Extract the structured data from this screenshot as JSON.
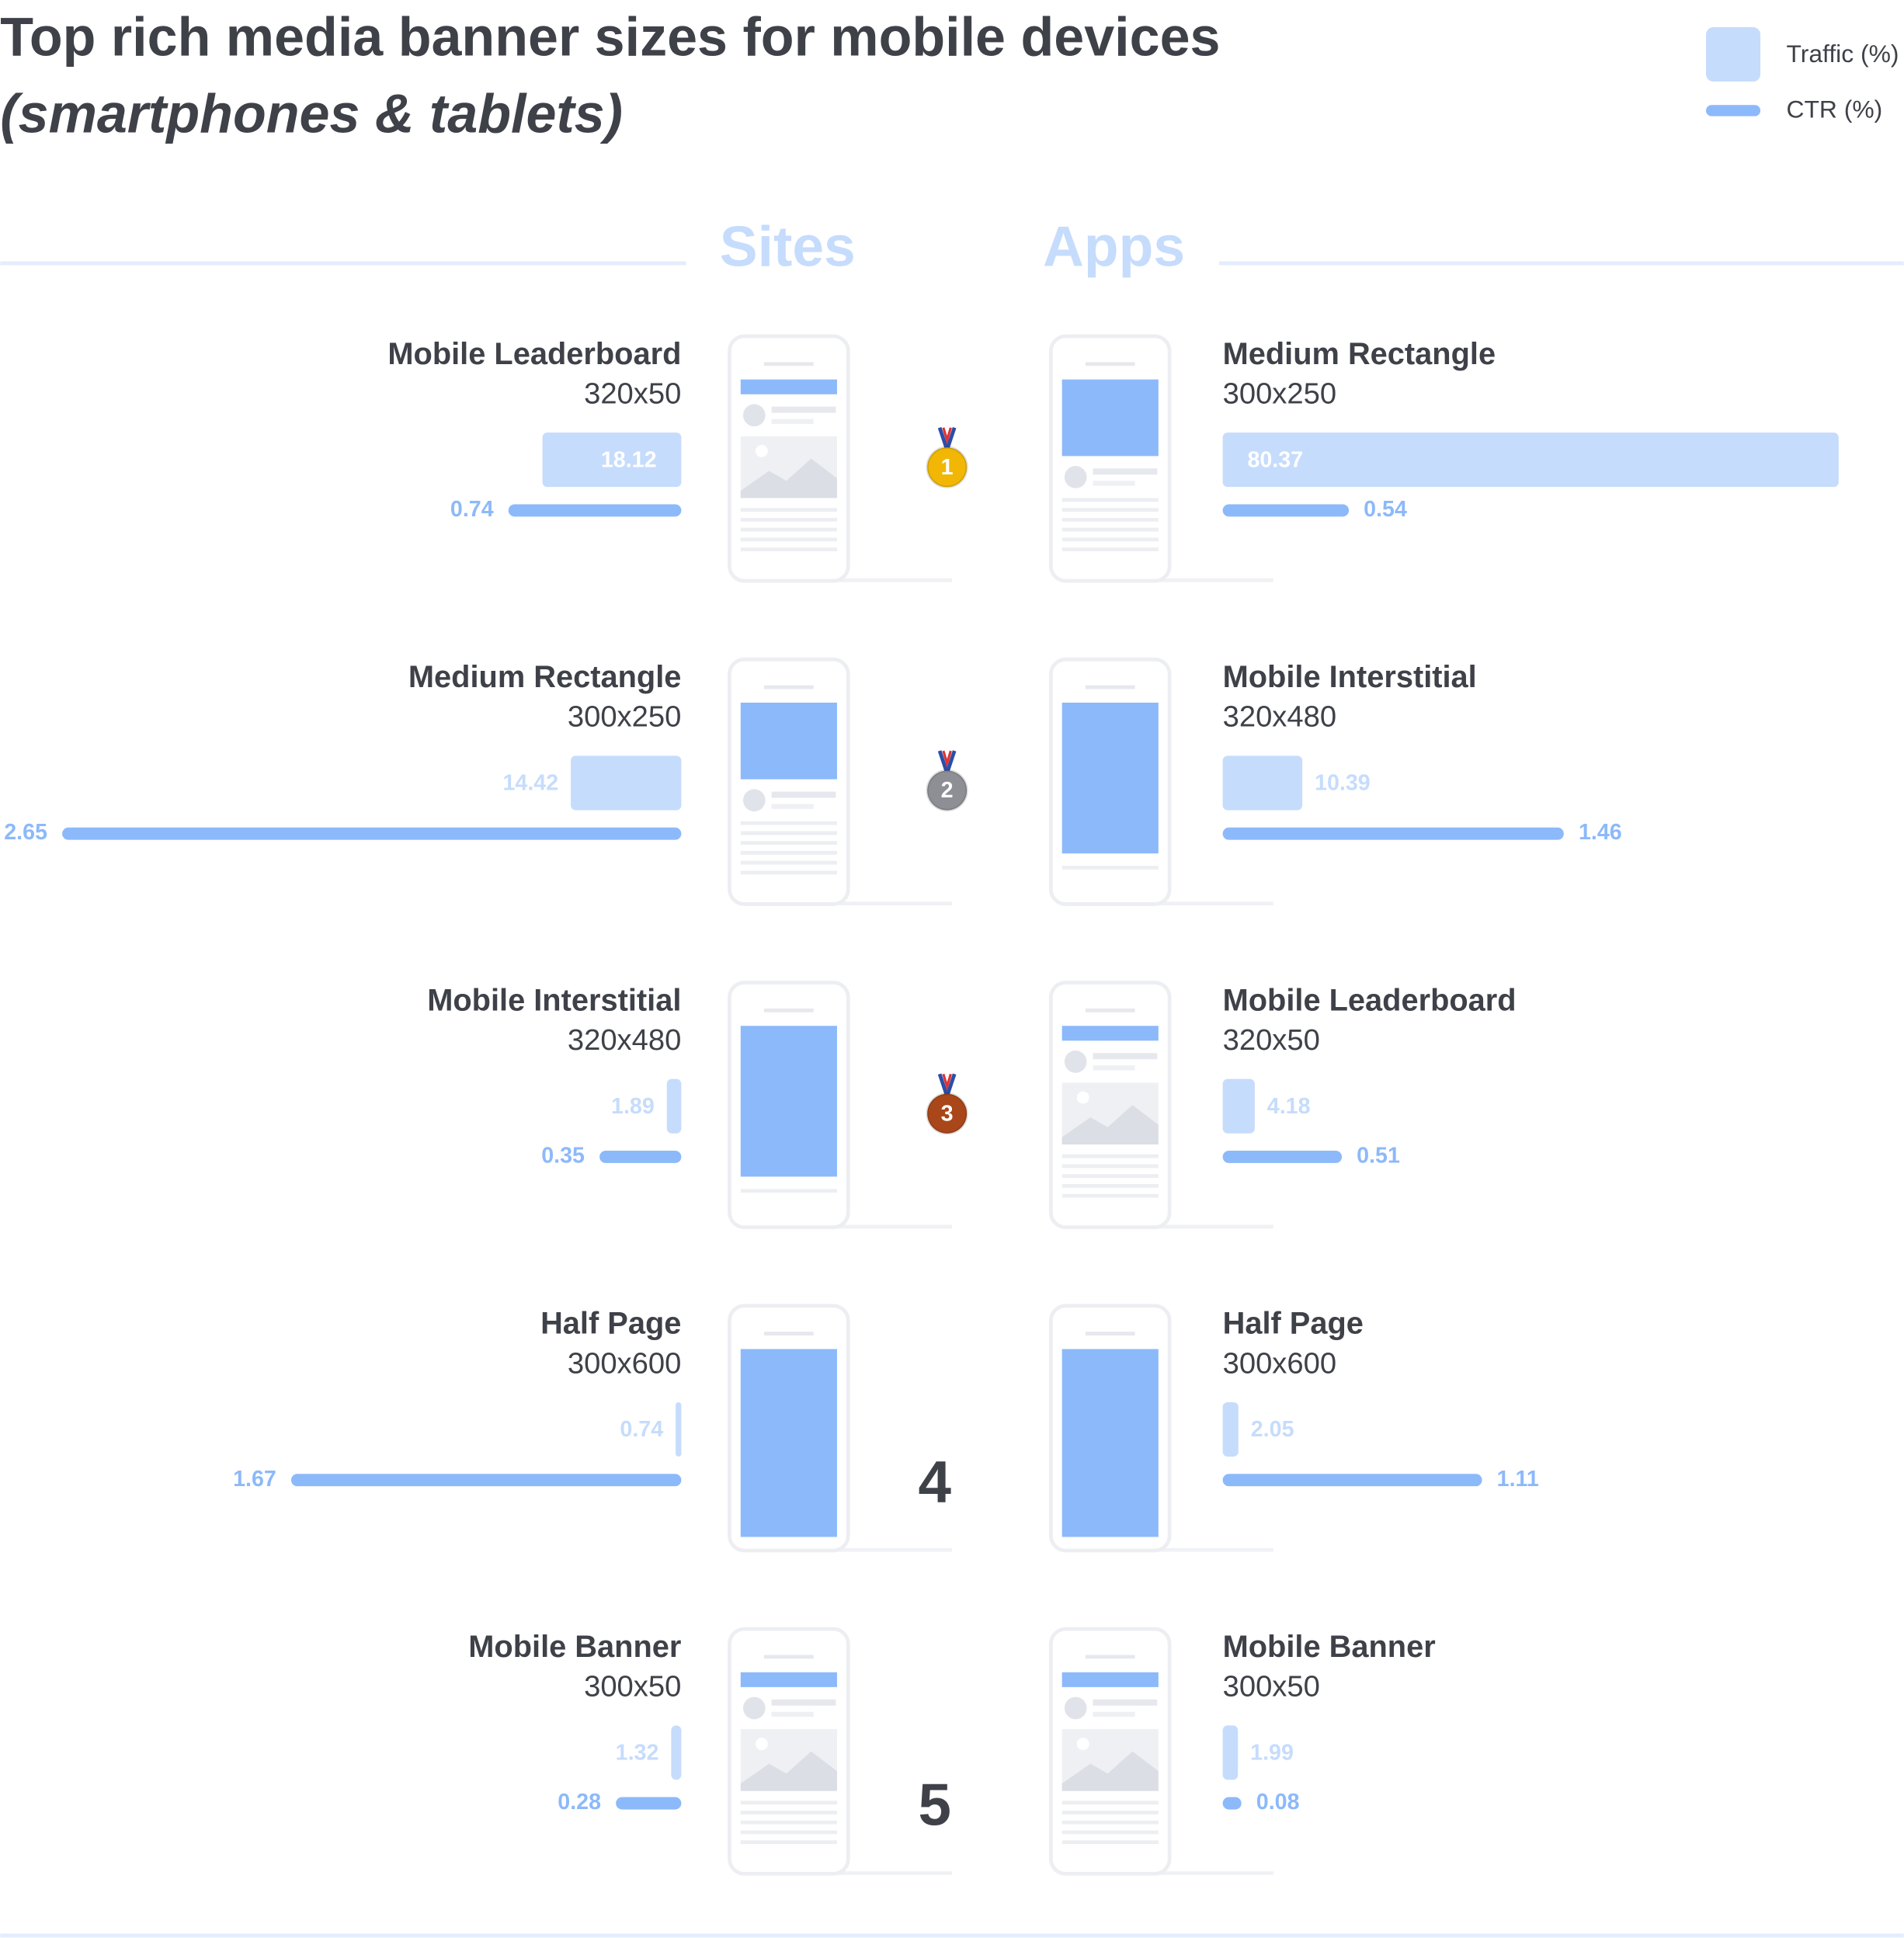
{
  "title": "Top rich media banner sizes for mobile devices",
  "subtitle": "(smartphones & tablets)",
  "ranks": [
    1,
    2,
    3,
    4,
    5
  ],
  "chart_data": [
    {
      "type": "bar",
      "title": "Sites",
      "side": "left",
      "categories": [
        "Mobile Leaderboard",
        "Medium Rectangle",
        "Mobile Interstitial",
        "Half Page",
        "Mobile Banner"
      ],
      "sizes": [
        "320x50",
        "300x250",
        "320x480",
        "300x600",
        "300x50"
      ],
      "series": [
        {
          "name": "Traffic (%)",
          "color": "#c6dcfc",
          "values": [
            18.12,
            14.42,
            1.89,
            0.74,
            1.32
          ]
        },
        {
          "name": "CTR (%)",
          "color": "#8cb9fa",
          "values": [
            0.74,
            2.65,
            0.35,
            1.67,
            0.28
          ]
        }
      ]
    },
    {
      "type": "bar",
      "title": "Apps",
      "side": "right",
      "categories": [
        "Medium Rectangle",
        "Mobile Interstitial",
        "Mobile Leaderboard",
        "Half Page",
        "Mobile Banner"
      ],
      "sizes": [
        "300x250",
        "320x480",
        "320x50",
        "300x600",
        "300x50"
      ],
      "series": [
        {
          "name": "Traffic (%)",
          "color": "#c6dcfc",
          "values": [
            80.37,
            10.39,
            4.18,
            2.05,
            1.99
          ]
        },
        {
          "name": "CTR (%)",
          "color": "#8cb9fa",
          "values": [
            0.54,
            1.46,
            0.51,
            1.11,
            0.08
          ]
        }
      ]
    }
  ]
}
